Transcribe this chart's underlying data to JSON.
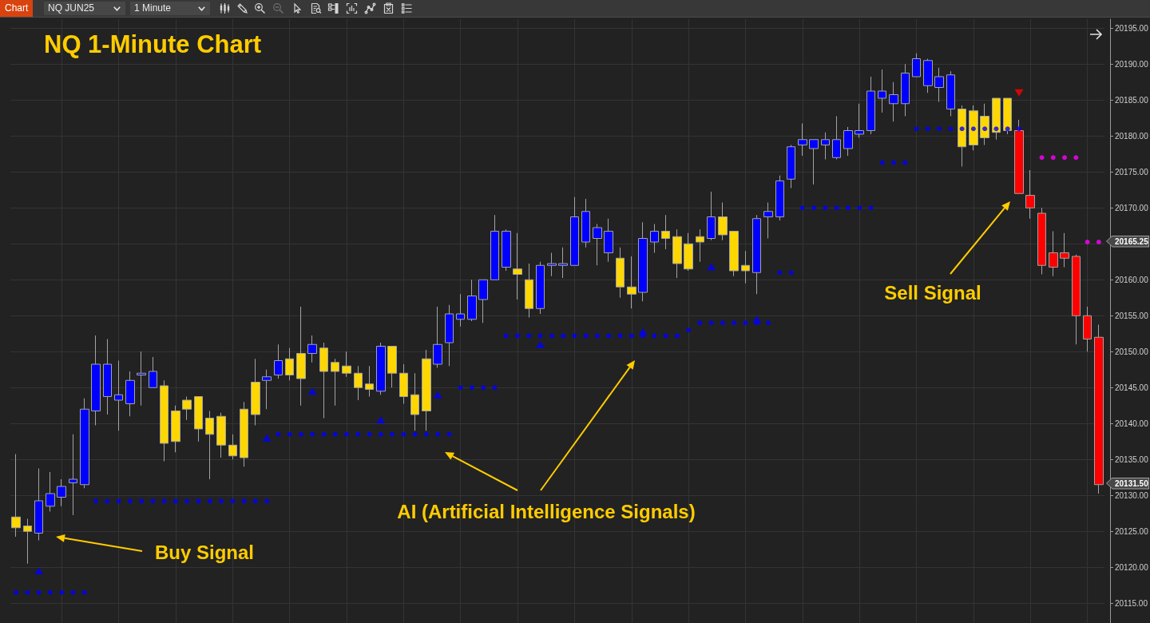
{
  "chart_data": {
    "type": "candlestick",
    "title": "NQ 1-Minute Chart",
    "categories": [
      null,
      null,
      null,
      null,
      null,
      null,
      null,
      null,
      null,
      null,
      null,
      null,
      null,
      null,
      null,
      null,
      null,
      null,
      null,
      null,
      null,
      null,
      null,
      null,
      null,
      null,
      null,
      null,
      null,
      null,
      null,
      null,
      null,
      null,
      null,
      null,
      null,
      null,
      null,
      null,
      null,
      null,
      null,
      null,
      null,
      null,
      null,
      null,
      null,
      null,
      null,
      null,
      null,
      null,
      null,
      null,
      null,
      null,
      null,
      null,
      null,
      null,
      null,
      null,
      null,
      null,
      null,
      null,
      null,
      null,
      null,
      null,
      null,
      null,
      null,
      null,
      null,
      null,
      null,
      null,
      null,
      null,
      null,
      null,
      null,
      null,
      null,
      null,
      null,
      null,
      null,
      null,
      null,
      null,
      null,
      null
    ],
    "ohlc": [
      [
        20127,
        20135.75,
        20124.25,
        20125.5
      ],
      [
        20125.75,
        20126.75,
        20120.5,
        20125
      ],
      [
        20124.75,
        20133.75,
        20123.75,
        20129.25
      ],
      [
        20128.5,
        20133.25,
        20127.75,
        20130.25
      ],
      [
        20129.75,
        20132.25,
        20128.5,
        20131.25
      ],
      [
        20131.75,
        20138.5,
        20127.25,
        20132.25
      ],
      [
        20131.5,
        20143.5,
        20131,
        20142
      ],
      [
        20141.75,
        20152.25,
        20139.75,
        20148.25
      ],
      [
        20143.75,
        20151.75,
        20141.25,
        20148.25
      ],
      [
        20143.25,
        20148.75,
        20139,
        20144
      ],
      [
        20142.75,
        20147.25,
        20141,
        20146
      ],
      [
        20146.75,
        20150,
        20142.5,
        20147
      ],
      [
        20145,
        20149.25,
        20145,
        20147.25
      ],
      [
        20145.25,
        20146,
        20134.75,
        20137.25
      ],
      [
        20141.75,
        20142.5,
        20136,
        20137.5
      ],
      [
        20143.25,
        20143.75,
        20140.5,
        20142
      ],
      [
        20143.75,
        20143.75,
        20137.5,
        20139.25
      ],
      [
        20140.75,
        20141.75,
        20132.25,
        20138.5
      ],
      [
        20141,
        20141.5,
        20135.25,
        20137
      ],
      [
        20137,
        20138.5,
        20135,
        20135.5
      ],
      [
        20142,
        20143,
        20134,
        20135.25
      ],
      [
        20145.75,
        20149,
        20139.75,
        20141.25
      ],
      [
        20146,
        20147.5,
        20142,
        20146.5
      ],
      [
        20146.75,
        20151,
        20146.25,
        20148.75
      ],
      [
        20149,
        20150.5,
        20146,
        20146.75
      ],
      [
        20149.75,
        20156.25,
        20142.5,
        20146.25
      ],
      [
        20149.75,
        20152.25,
        20148.5,
        20151
      ],
      [
        20150.5,
        20151.25,
        20140.75,
        20147.25
      ],
      [
        20148.5,
        20149,
        20142.5,
        20147.25
      ],
      [
        20148,
        20150,
        20146.5,
        20147
      ],
      [
        20147,
        20148,
        20143.25,
        20145
      ],
      [
        20145.5,
        20148,
        20143.75,
        20144.75
      ],
      [
        20144.5,
        20151.25,
        20144,
        20150.75
      ],
      [
        20150.75,
        20150.75,
        20145,
        20147
      ],
      [
        20147,
        20148.25,
        20142.75,
        20143.75
      ],
      [
        20144,
        20147,
        20139,
        20141.25
      ],
      [
        20149,
        20150.25,
        20139,
        20141.75
      ],
      [
        20148.25,
        20156.25,
        20147.75,
        20151
      ],
      [
        20151.25,
        20156.5,
        20148,
        20155.25
      ],
      [
        20154.5,
        20158,
        20153.5,
        20155.25
      ],
      [
        20154.5,
        20160,
        20154.25,
        20157.75
      ],
      [
        20157.25,
        20160,
        20154,
        20160
      ],
      [
        20160,
        20169,
        20160,
        20166.75
      ],
      [
        20161.75,
        20167,
        20161.25,
        20166.75
      ],
      [
        20161.5,
        20166.5,
        20157.25,
        20160.75
      ],
      [
        20160,
        20162.25,
        20154.75,
        20156
      ],
      [
        20156,
        20162.5,
        20155.25,
        20162
      ],
      [
        20162,
        20163.75,
        20160.5,
        20162.25
      ],
      [
        20162,
        20164.5,
        20160.25,
        20162.25
      ],
      [
        20162,
        20171.5,
        20162,
        20168.75
      ],
      [
        20165.25,
        20171.25,
        20164.5,
        20169.5
      ],
      [
        20165.75,
        20167.75,
        20162,
        20167.25
      ],
      [
        20163.75,
        20168.5,
        20162.5,
        20166.75
      ],
      [
        20163,
        20164.5,
        20157.5,
        20159
      ],
      [
        20159,
        20163.25,
        20156,
        20158
      ],
      [
        20158.25,
        20168,
        20157,
        20165.75
      ],
      [
        20165.25,
        20167.75,
        20163.75,
        20166.75
      ],
      [
        20166.75,
        20169,
        20164.25,
        20165.75
      ],
      [
        20166,
        20167,
        20160.25,
        20162.25
      ],
      [
        20165,
        20166.5,
        20161.25,
        20161.5
      ],
      [
        20166,
        20167,
        20162.5,
        20165.25
      ],
      [
        20165.75,
        20172.25,
        20165.5,
        20168.75
      ],
      [
        20168.75,
        20170.75,
        20165.5,
        20166.25
      ],
      [
        20166.75,
        20166.75,
        20160.5,
        20161.25
      ],
      [
        20162,
        20164,
        20159.5,
        20161.25
      ],
      [
        20161,
        20169,
        20158,
        20168.5
      ],
      [
        20168.75,
        20170.75,
        20165.75,
        20169.5
      ],
      [
        20168.75,
        20174.5,
        20168.25,
        20173.75
      ],
      [
        20174,
        20178.75,
        20172.75,
        20178.5
      ],
      [
        20178.75,
        20181.75,
        20177.25,
        20179.5
      ],
      [
        20178.25,
        20179.5,
        20173.25,
        20179.5
      ],
      [
        20178.75,
        20180.5,
        20176.75,
        20179.5
      ],
      [
        20177,
        20182.75,
        20176.75,
        20179.5
      ],
      [
        20178.25,
        20181.25,
        20177.25,
        20180.75
      ],
      [
        20180.25,
        20184.5,
        20179.75,
        20180.75
      ],
      [
        20180.75,
        20188.25,
        20180.25,
        20186.25
      ],
      [
        20185.25,
        20189.25,
        20183.25,
        20186.25
      ],
      [
        20184.5,
        20187.5,
        20182,
        20185.75
      ],
      [
        20184.5,
        20190,
        20182.75,
        20188.75
      ],
      [
        20188.25,
        20191.5,
        20188.25,
        20190.75
      ],
      [
        20187,
        20190.75,
        20186,
        20190.5
      ],
      [
        20186.75,
        20189.5,
        20184.75,
        20188.25
      ],
      [
        20183.75,
        20189,
        20182.75,
        20188.5
      ],
      [
        20183.75,
        20184.25,
        20175.75,
        20178.5
      ],
      [
        20183.5,
        20184.25,
        20178,
        20178.75
      ],
      [
        20182.75,
        20184.5,
        20178.75,
        20179.75
      ],
      [
        20185.25,
        20185.25,
        20179.5,
        20180.5
      ],
      [
        20185.25,
        20185.25,
        20180.25,
        20180.75
      ],
      [
        20180.75,
        20182.25,
        20172,
        20172
      ],
      [
        20171.75,
        20175.25,
        20168.5,
        20170
      ],
      [
        20169.25,
        20170,
        20160.75,
        20162
      ],
      [
        20163.75,
        20166.75,
        20160.5,
        20161.75
      ],
      [
        20163.75,
        20166.5,
        20161.75,
        20163
      ],
      [
        20163.25,
        20163.5,
        20151,
        20155
      ],
      [
        20155,
        20156.25,
        20150,
        20151.75
      ],
      [
        20152,
        20153.75,
        20130.25,
        20131.5
      ]
    ],
    "colors": [
      "#ffd700",
      "#ffd700",
      "#0000ff",
      "#0000ff",
      "#0000ff",
      "#0000ff",
      "#0000ff",
      "#0000ff",
      "#0000ff",
      "#0000ff",
      "#0000ff",
      "#0000ff",
      "#0000ff",
      "#ffd700",
      "#ffd700",
      "#ffd700",
      "#ffd700",
      "#ffd700",
      "#ffd700",
      "#ffd700",
      "#ffd700",
      "#ffd700",
      "#0000ff",
      "#0000ff",
      "#ffd700",
      "#ffd700",
      "#0000ff",
      "#ffd700",
      "#ffd700",
      "#ffd700",
      "#ffd700",
      "#ffd700",
      "#0000ff",
      "#ffd700",
      "#ffd700",
      "#ffd700",
      "#ffd700",
      "#0000ff",
      "#0000ff",
      "#0000ff",
      "#0000ff",
      "#0000ff",
      "#0000ff",
      "#0000ff",
      "#ffd700",
      "#ffd700",
      "#0000ff",
      "#0000ff",
      "#0000ff",
      "#0000ff",
      "#0000ff",
      "#0000ff",
      "#0000ff",
      "#ffd700",
      "#ffd700",
      "#0000ff",
      "#0000ff",
      "#ffd700",
      "#ffd700",
      "#ffd700",
      "#ffd700",
      "#0000ff",
      "#ffd700",
      "#ffd700",
      "#ffd700",
      "#0000ff",
      "#0000ff",
      "#0000ff",
      "#0000ff",
      "#0000ff",
      "#0000ff",
      "#0000ff",
      "#0000ff",
      "#0000ff",
      "#0000ff",
      "#0000ff",
      "#0000ff",
      "#0000ff",
      "#0000ff",
      "#0000ff",
      "#0000ff",
      "#0000ff",
      "#0000ff",
      "#ffd700",
      "#ffd700",
      "#ffd700",
      "#ffd700",
      "#ffd700",
      "#ff0000",
      "#ff0000",
      "#ff0000",
      "#ff0000",
      "#ff0000",
      "#ff0000",
      "#ff0000",
      "#ff0000"
    ],
    "series": [
      {
        "type": "scatter",
        "marker": "circle",
        "color": "#0000ff",
        "values": [
          20116.5,
          20116.5,
          20116.5,
          20116.5,
          20116.5,
          20116.5,
          20116.5,
          20129.2,
          20129.2,
          20129.2,
          20129.2,
          20129.2,
          20129.2,
          20129.2,
          20129.2,
          20129.2,
          20129.2,
          20129.2,
          20129.2,
          20129.2,
          20129.2,
          20129.2,
          20129.2,
          20138.5,
          20138.5,
          20138.5,
          20138.5,
          20138.5,
          20138.5,
          20138.5,
          20138.5,
          20138.5,
          20138.5,
          20138.5,
          20138.5,
          20138.5,
          20138.5,
          20138.5,
          20138.5,
          20145,
          20145,
          20145,
          20145,
          20152.2,
          20152.2,
          20152.2,
          20152.2,
          20152.2,
          20152.2,
          20152.2,
          20152.2,
          20152.2,
          20152.2,
          20152.2,
          20152.2,
          20152.2,
          20152.2,
          20152.2,
          20152.2,
          20153,
          20154,
          20154,
          20154,
          20154,
          20154,
          20154,
          20154,
          20161,
          20161,
          20170,
          20170,
          20170,
          20170,
          20170,
          20170,
          20170,
          20176.3,
          20176.3,
          20176.3,
          20181,
          20181,
          20181,
          20181,
          20181,
          20181,
          20181,
          20181,
          20181,
          20181,
          null,
          null,
          null,
          null,
          null,
          null,
          null
        ]
      },
      {
        "type": "scatter",
        "marker": "circle",
        "color": "#ff00ff",
        "values": [
          null,
          null,
          null,
          null,
          null,
          null,
          null,
          null,
          null,
          null,
          null,
          null,
          null,
          null,
          null,
          null,
          null,
          null,
          null,
          null,
          null,
          null,
          null,
          null,
          null,
          null,
          null,
          null,
          null,
          null,
          null,
          null,
          null,
          null,
          null,
          null,
          null,
          null,
          null,
          null,
          null,
          null,
          null,
          null,
          null,
          null,
          null,
          null,
          null,
          null,
          null,
          null,
          null,
          null,
          null,
          null,
          null,
          null,
          null,
          null,
          null,
          null,
          null,
          null,
          null,
          null,
          null,
          null,
          null,
          null,
          null,
          null,
          null,
          null,
          null,
          null,
          null,
          null,
          null,
          null,
          null,
          null,
          null,
          null,
          null,
          null,
          null,
          null,
          null,
          null,
          20177,
          20177,
          20177,
          20177,
          20165.25,
          20165.25
        ]
      },
      {
        "type": "scatter",
        "marker": "triangle",
        "color": "#0000ff",
        "values": [
          null,
          null,
          20119.5,
          null,
          null,
          null,
          null,
          null,
          null,
          null,
          null,
          null,
          null,
          null,
          null,
          null,
          null,
          null,
          null,
          null,
          null,
          null,
          20138,
          null,
          null,
          null,
          20144.5,
          null,
          null,
          null,
          null,
          null,
          20140.5,
          null,
          null,
          null,
          null,
          20144,
          null,
          null,
          null,
          null,
          null,
          null,
          null,
          null,
          20151,
          null,
          null,
          null,
          null,
          null,
          null,
          null,
          null,
          20152.8,
          null,
          null,
          null,
          null,
          null,
          20161.8,
          null,
          null,
          null,
          20154.5,
          null,
          null,
          null,
          null,
          null,
          null,
          null,
          null,
          null,
          null,
          null,
          null,
          null,
          null,
          null,
          null,
          null,
          null,
          null,
          null,
          null,
          null,
          null,
          null,
          null,
          null,
          null,
          null,
          null,
          null
        ]
      },
      {
        "type": "scatter",
        "marker": "triangle-down",
        "color": "#ff0000",
        "values": [
          null,
          null,
          null,
          null,
          null,
          null,
          null,
          null,
          null,
          null,
          null,
          null,
          null,
          null,
          null,
          null,
          null,
          null,
          null,
          null,
          null,
          null,
          null,
          null,
          null,
          null,
          null,
          null,
          null,
          null,
          null,
          null,
          null,
          null,
          null,
          null,
          null,
          null,
          null,
          null,
          null,
          null,
          null,
          null,
          null,
          null,
          null,
          null,
          null,
          null,
          null,
          null,
          null,
          null,
          null,
          null,
          null,
          null,
          null,
          null,
          null,
          null,
          null,
          null,
          null,
          null,
          null,
          null,
          null,
          null,
          null,
          null,
          null,
          null,
          null,
          null,
          null,
          null,
          null,
          null,
          null,
          null,
          null,
          null,
          null,
          null,
          null,
          null,
          20186,
          null,
          null,
          null,
          null,
          null,
          null,
          null
        ]
      }
    ],
    "annotations": [
      "Chart",
      "NQ JUN25",
      "1 Minute",
      "Buy Signal",
      "AI (Artificial Intelligence Signals)",
      "Sell Signal",
      "20165.25",
      "20131.50"
    ],
    "ylim": [
      20112.25,
      20196.25
    ],
    "yticks": [
      {
        "value": 20115,
        "label": "20115.00"
      },
      {
        "value": 20120,
        "label": "20120.00"
      },
      {
        "value": 20125,
        "label": "20125.00"
      },
      {
        "value": 20130,
        "label": "20130.00"
      },
      {
        "value": 20135,
        "label": "20135.00"
      },
      {
        "value": 20140,
        "label": "20140.00"
      },
      {
        "value": 20145,
        "label": "20145.00"
      },
      {
        "value": 20150,
        "label": "20150.00"
      },
      {
        "value": 20155,
        "label": "20155.00"
      },
      {
        "value": 20160,
        "label": "20160.00"
      },
      {
        "value": 20165,
        "label": null
      },
      {
        "value": 20170,
        "label": "20170.00"
      },
      {
        "value": 20175,
        "label": "20175.00"
      },
      {
        "value": 20180,
        "label": "20180.00"
      },
      {
        "value": 20185,
        "label": "20185.00"
      },
      {
        "value": 20190,
        "label": "20190.00"
      },
      {
        "value": 20195,
        "label": "20195.00"
      }
    ],
    "grid": true,
    "tick_labels": "y"
  }
}
